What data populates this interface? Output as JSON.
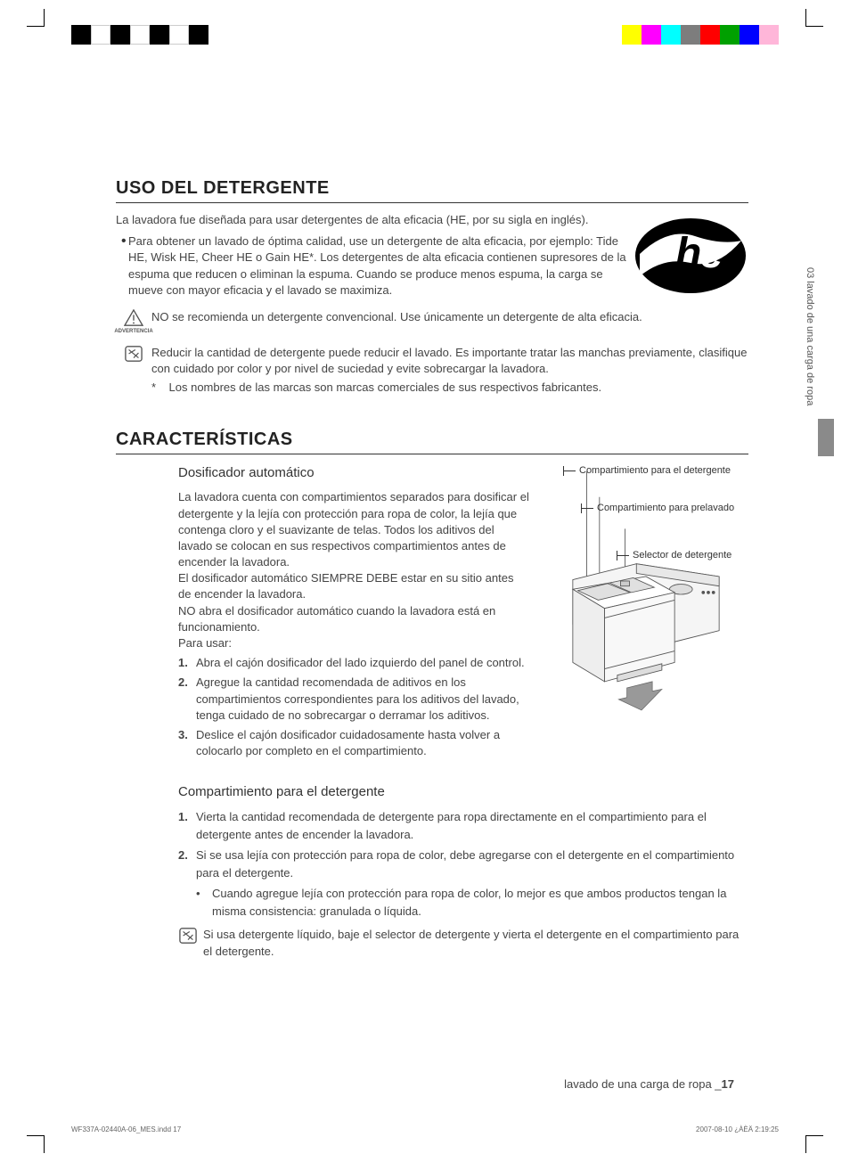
{
  "registration_colors_left": [
    "#000000",
    "#ffffff",
    "#000000",
    "#ffffff",
    "#000000",
    "#ffffff",
    "#000000"
  ],
  "registration_colors_right": [
    "#ffff00",
    "#ff00ff",
    "#00ffff",
    "#7d7d7d",
    "#ff0000",
    "#00a000",
    "#0000ff",
    "#ffb6d9"
  ],
  "side_tab": "03 lavado de una carga de ropa",
  "section1": {
    "title": "USO DEL DETERGENTE",
    "intro": "La lavadora fue diseñada para usar detergentes de alta eficacia (HE, por su sigla en inglés).",
    "bullet": "Para obtener un lavado de óptima calidad, use un detergente de alta eficacia, por ejemplo: Tide HE, Wisk HE, Cheer HE o Gain HE*. Los detergentes de alta eficacia contienen supresores de la espuma que reducen o eliminan la espuma. Cuando se produce menos espuma, la carga se mueve con mayor eficacia y el lavado se maximiza.",
    "warn_label": "ADVERTENCIA",
    "warn_text": "NO se recomienda un detergente convencional. Use únicamente un detergente de alta eficacia.",
    "note_text": "Reducir la cantidad de detergente puede reducir el lavado. Es importante tratar las manchas previamente, clasifique con cuidado por color y por nivel de suciedad y evite sobrecargar la lavadora.",
    "footnote": "Los nombres de las marcas son marcas comerciales de sus respectivos fabricantes.",
    "he_logo_text": "he"
  },
  "section2": {
    "title": "CARACTERÍSTICAS",
    "sub1": {
      "heading": "Dosificador automático",
      "p1": "La lavadora cuenta con compartimientos separados para dosificar el detergente y la lejía con protección para ropa de color, la lejía que contenga cloro y el suavizante de telas. Todos los aditivos del lavado se colocan en sus respectivos compartimientos antes de encender la lavadora.",
      "p2": "El dosificador automático SIEMPRE DEBE estar en su sitio antes de encender la lavadora.",
      "p3": "NO abra el dosificador automático cuando la lavadora está en funcionamiento.",
      "p4": "Para usar:",
      "steps": [
        "Abra el cajón dosificador del lado izquierdo del panel de control.",
        "Agregue la cantidad recomendada de aditivos en los compartimientos correspondientes para los aditivos del lavado, tenga cuidado de no sobrecargar o derramar los aditivos.",
        "Deslice el cajón dosificador cuidadosamente hasta volver a colocarlo por completo en el compartimiento."
      ]
    },
    "callouts": {
      "c1": "Compartimiento para el detergente",
      "c2": "Compartimiento para prelavado",
      "c3": "Selector de detergente"
    },
    "sub2": {
      "heading": "Compartimiento para el detergente",
      "steps": [
        "Vierta la cantidad recomendada de detergente para ropa directamente en el compartimiento para el detergente antes de encender la lavadora.",
        "Si se usa lejía con protección para ropa de color, debe agregarse con el detergente en el compartimiento para el detergente."
      ],
      "sub_bullet": "Cuando agregue lejía con protección para ropa de color, lo mejor es que ambos productos tengan la misma consistencia: granulada o líquida.",
      "note": "Si usa detergente líquido, baje el selector de detergente y vierta el detergente en el compartimiento para el detergente."
    }
  },
  "footer": {
    "text": "lavado de una carga de ropa _",
    "page": "17"
  },
  "imprint": {
    "left": "WF337A-02440A-06_MES.indd   17",
    "right": "2007-08-10   ¿ÀÈÄ 2:19:25"
  }
}
